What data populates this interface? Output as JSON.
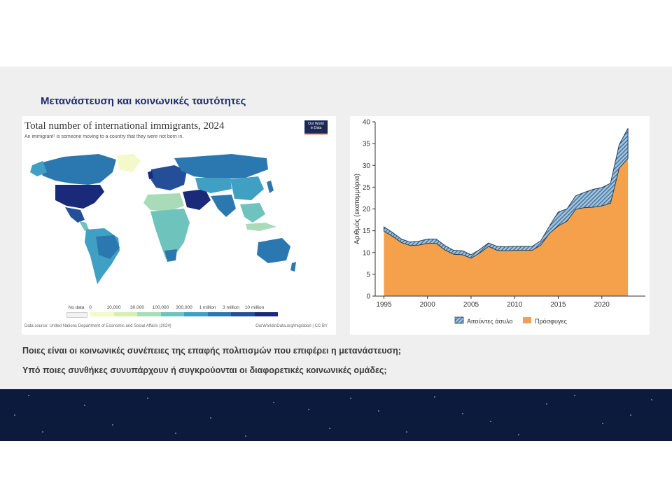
{
  "slide": {
    "title": "Μετανάστευση και κοινωνικές ταυτότητες",
    "questions": [
      "Ποιες είναι οι κοινωνικές συνέπειες της επαφής πολιτισμών που επιφέρει η μετανάστευση;",
      "Υπό ποιες συνθήκες συνυπάρχουν ή συγκρούονται οι διαφορετικές κοινωνικές ομάδες;"
    ]
  },
  "map": {
    "title": "Total number of international immigrants, 2024",
    "subtitle": "An immigrant¹ is someone moving to a country that they were not born in.",
    "logo_line1": "Our World",
    "logo_line2": "in Data",
    "legend": [
      {
        "label": "No data",
        "color": "#f2f2f2"
      },
      {
        "label": "0",
        "color": "#f4f9c9"
      },
      {
        "label": "10,000",
        "color": "#d7efb3"
      },
      {
        "label": "30,000",
        "color": "#a9dbb8"
      },
      {
        "label": "100,000",
        "color": "#6ec3bd"
      },
      {
        "label": "300,000",
        "color": "#3fa0c4"
      },
      {
        "label": "1 million",
        "color": "#2b78b0"
      },
      {
        "label": "3 million",
        "color": "#244f98"
      },
      {
        "label": "10 million",
        "color": "#1a2a78"
      }
    ],
    "source": "Data source: United Nations Department of Economic and Social Affairs (2024)",
    "credit": "OurWorldinData.org/migration | CC BY"
  },
  "chart_data": {
    "type": "area",
    "x": [
      1995,
      1996,
      1997,
      1998,
      1999,
      2000,
      2001,
      2002,
      2003,
      2004,
      2005,
      2006,
      2007,
      2008,
      2009,
      2010,
      2011,
      2012,
      2013,
      2014,
      2015,
      2016,
      2017,
      2018,
      2019,
      2020,
      2021,
      2022,
      2023
    ],
    "series": [
      {
        "name": "Πρόσφυγες",
        "color": "#f5a04a",
        "values": [
          14.9,
          13.7,
          12.3,
          11.6,
          11.7,
          12.1,
          12.1,
          10.6,
          9.6,
          9.5,
          8.7,
          9.9,
          11.4,
          10.5,
          10.4,
          10.5,
          10.5,
          10.5,
          11.7,
          14.4,
          16.1,
          17.2,
          19.9,
          20.3,
          20.4,
          20.7,
          21.3,
          29.4,
          31.6
        ]
      },
      {
        "name": "Αιτούντες άσυλο",
        "color": "#2e5f8a",
        "values": [
          1.0,
          0.9,
          0.8,
          0.8,
          0.9,
          1.0,
          1.0,
          1.0,
          0.9,
          0.9,
          0.8,
          0.8,
          0.8,
          0.9,
          0.9,
          0.9,
          0.9,
          0.9,
          1.0,
          1.7,
          3.2,
          2.8,
          3.1,
          3.5,
          4.1,
          4.2,
          4.6,
          5.4,
          6.9
        ]
      }
    ],
    "ylabel": "Αριθμός (εκατομμύρια)",
    "xlabel": "",
    "xticks": [
      1995,
      2000,
      2005,
      2010,
      2015,
      2020
    ],
    "yticks": [
      0,
      5,
      10,
      15,
      20,
      25,
      30,
      35,
      40
    ],
    "ylim": [
      0,
      40
    ],
    "xlim": [
      1994,
      2025
    ],
    "legend_position": "bottom",
    "stacked": true,
    "grid": false
  }
}
